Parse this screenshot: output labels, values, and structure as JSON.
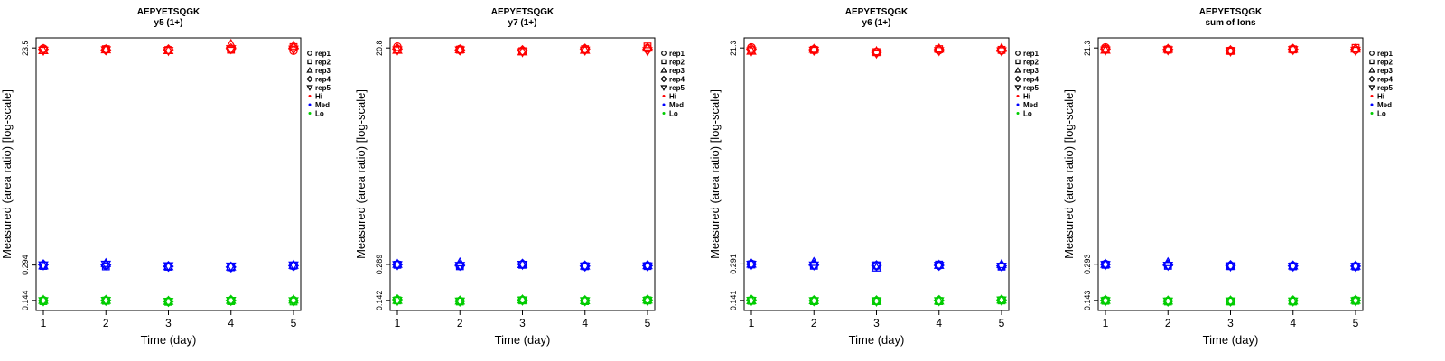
{
  "chart_data": [
    {
      "type": "scatter",
      "title": "AEPYETSQGK",
      "subtitle": "y5 (1+)",
      "xlabel": "Time (day)",
      "ylabel": "Measured (area ratio) [log-scale]",
      "log_y": true,
      "x": [
        1,
        2,
        3,
        4,
        5
      ],
      "yticks": [
        0.144,
        0.294,
        23.5
      ],
      "ytick_labels": [
        "0.144",
        "0.294",
        "23.5"
      ],
      "legend_placement": "right",
      "series": [
        {
          "rep": "rep1",
          "level": "Hi",
          "values": [
            23.2,
            23.0,
            22.6,
            22.8,
            22.3
          ]
        },
        {
          "rep": "rep2",
          "level": "Hi",
          "values": [
            22.6,
            22.9,
            22.5,
            22.7,
            23.9
          ]
        },
        {
          "rep": "rep3",
          "level": "Hi",
          "values": [
            22.4,
            22.8,
            22.4,
            25.4,
            24.6
          ]
        },
        {
          "rep": "rep4",
          "level": "Hi",
          "values": [
            22.9,
            22.6,
            22.7,
            23.2,
            23.4
          ]
        },
        {
          "rep": "rep5",
          "level": "Hi",
          "values": [
            22.3,
            22.5,
            22.2,
            23.0,
            22.8
          ]
        },
        {
          "rep": "rep1",
          "level": "Med",
          "values": [
            0.294,
            0.292,
            0.287,
            0.283,
            0.288
          ]
        },
        {
          "rep": "rep2",
          "level": "Med",
          "values": [
            0.289,
            0.286,
            0.284,
            0.281,
            0.291
          ]
        },
        {
          "rep": "rep3",
          "level": "Med",
          "values": [
            0.291,
            0.305,
            0.286,
            0.284,
            0.294
          ]
        },
        {
          "rep": "rep4",
          "level": "Med",
          "values": [
            0.296,
            0.294,
            0.286,
            0.282,
            0.29
          ]
        },
        {
          "rep": "rep5",
          "level": "Med",
          "values": [
            0.293,
            0.297,
            0.288,
            0.286,
            0.292
          ]
        },
        {
          "rep": "rep1",
          "level": "Lo",
          "values": [
            0.144,
            0.144,
            0.141,
            0.143,
            0.144
          ]
        },
        {
          "rep": "rep2",
          "level": "Lo",
          "values": [
            0.142,
            0.143,
            0.14,
            0.142,
            0.141
          ]
        },
        {
          "rep": "rep3",
          "level": "Lo",
          "values": [
            0.145,
            0.145,
            0.142,
            0.145,
            0.146
          ]
        },
        {
          "rep": "rep4",
          "level": "Lo",
          "values": [
            0.143,
            0.144,
            0.141,
            0.144,
            0.143
          ]
        },
        {
          "rep": "rep5",
          "level": "Lo",
          "values": [
            0.142,
            0.143,
            0.14,
            0.143,
            0.142
          ]
        }
      ]
    },
    {
      "type": "scatter",
      "title": "AEPYETSQGK",
      "subtitle": "y7 (1+)",
      "xlabel": "Time (day)",
      "ylabel": "Measured (area ratio) [log-scale]",
      "log_y": true,
      "x": [
        1,
        2,
        3,
        4,
        5
      ],
      "yticks": [
        0.142,
        0.289,
        20.8
      ],
      "ytick_labels": [
        "0.142",
        "0.289",
        "20.8"
      ],
      "legend_placement": "right",
      "series": [
        {
          "rep": "rep1",
          "level": "Hi",
          "values": [
            21.3,
            20.3,
            19.6,
            20.1,
            20.7
          ]
        },
        {
          "rep": "rep2",
          "level": "Hi",
          "values": [
            20.2,
            20.1,
            19.5,
            20.3,
            21.4
          ]
        },
        {
          "rep": "rep3",
          "level": "Hi",
          "values": [
            20.0,
            20.2,
            19.4,
            20.0,
            20.9
          ]
        },
        {
          "rep": "rep4",
          "level": "Hi",
          "values": [
            20.4,
            20.0,
            19.8,
            20.4,
            20.2
          ]
        },
        {
          "rep": "rep5",
          "level": "Hi",
          "values": [
            19.9,
            19.9,
            19.2,
            19.8,
            19.6
          ]
        },
        {
          "rep": "rep1",
          "level": "Med",
          "values": [
            0.289,
            0.281,
            0.289,
            0.281,
            0.281
          ]
        },
        {
          "rep": "rep2",
          "level": "Med",
          "values": [
            0.287,
            0.279,
            0.287,
            0.279,
            0.28
          ]
        },
        {
          "rep": "rep3",
          "level": "Med",
          "values": [
            0.291,
            0.3,
            0.29,
            0.282,
            0.284
          ]
        },
        {
          "rep": "rep4",
          "level": "Med",
          "values": [
            0.288,
            0.284,
            0.291,
            0.28,
            0.282
          ]
        },
        {
          "rep": "rep5",
          "level": "Med",
          "values": [
            0.286,
            0.282,
            0.288,
            0.278,
            0.279
          ]
        },
        {
          "rep": "rep1",
          "level": "Lo",
          "values": [
            0.143,
            0.14,
            0.143,
            0.141,
            0.143
          ]
        },
        {
          "rep": "rep2",
          "level": "Lo",
          "values": [
            0.142,
            0.139,
            0.142,
            0.14,
            0.142
          ]
        },
        {
          "rep": "rep3",
          "level": "Lo",
          "values": [
            0.143,
            0.141,
            0.144,
            0.142,
            0.144
          ]
        },
        {
          "rep": "rep4",
          "level": "Lo",
          "values": [
            0.144,
            0.14,
            0.143,
            0.141,
            0.143
          ]
        },
        {
          "rep": "rep5",
          "level": "Lo",
          "values": [
            0.141,
            0.139,
            0.142,
            0.14,
            0.141
          ]
        }
      ]
    },
    {
      "type": "scatter",
      "title": "AEPYETSQGK",
      "subtitle": "y6 (1+)",
      "xlabel": "Time (day)",
      "ylabel": "Measured (area ratio) [log-scale]",
      "log_y": true,
      "x": [
        1,
        2,
        3,
        4,
        5
      ],
      "yticks": [
        0.141,
        0.291,
        21.3
      ],
      "ytick_labels": [
        "0.141",
        "0.291",
        "21.3"
      ],
      "legend_placement": "right",
      "series": [
        {
          "rep": "rep1",
          "level": "Hi",
          "values": [
            21.5,
            20.7,
            19.7,
            20.4,
            20.3
          ]
        },
        {
          "rep": "rep2",
          "level": "Hi",
          "values": [
            20.6,
            20.5,
            19.6,
            20.8,
            20.5
          ]
        },
        {
          "rep": "rep3",
          "level": "Hi",
          "values": [
            20.1,
            20.9,
            19.9,
            21.0,
            21.2
          ]
        },
        {
          "rep": "rep4",
          "level": "Hi",
          "values": [
            20.8,
            20.6,
            19.5,
            20.6,
            20.4
          ]
        },
        {
          "rep": "rep5",
          "level": "Hi",
          "values": [
            20.0,
            20.2,
            19.1,
            20.1,
            20.0
          ]
        },
        {
          "rep": "rep1",
          "level": "Med",
          "values": [
            0.291,
            0.284,
            0.281,
            0.282,
            0.278
          ]
        },
        {
          "rep": "rep2",
          "level": "Med",
          "values": [
            0.288,
            0.281,
            0.283,
            0.287,
            0.276
          ]
        },
        {
          "rep": "rep3",
          "level": "Med",
          "values": [
            0.292,
            0.302,
            0.27,
            0.285,
            0.289
          ]
        },
        {
          "rep": "rep4",
          "level": "Med",
          "values": [
            0.29,
            0.286,
            0.282,
            0.283,
            0.28
          ]
        },
        {
          "rep": "rep5",
          "level": "Med",
          "values": [
            0.287,
            0.283,
            0.279,
            0.281,
            0.277
          ]
        },
        {
          "rep": "rep1",
          "level": "Lo",
          "values": [
            0.141,
            0.14,
            0.139,
            0.14,
            0.142
          ]
        },
        {
          "rep": "rep2",
          "level": "Lo",
          "values": [
            0.14,
            0.139,
            0.139,
            0.139,
            0.141
          ]
        },
        {
          "rep": "rep3",
          "level": "Lo",
          "values": [
            0.141,
            0.141,
            0.14,
            0.14,
            0.143
          ]
        },
        {
          "rep": "rep4",
          "level": "Lo",
          "values": [
            0.142,
            0.14,
            0.14,
            0.141,
            0.142
          ]
        },
        {
          "rep": "rep5",
          "level": "Lo",
          "values": [
            0.14,
            0.139,
            0.138,
            0.139,
            0.141
          ]
        }
      ]
    },
    {
      "type": "scatter",
      "title": "AEPYETSQGK",
      "subtitle": "sum of Ions",
      "xlabel": "Time (day)",
      "ylabel": "Measured (area ratio) [log-scale]",
      "log_y": true,
      "x": [
        1,
        2,
        3,
        4,
        5
      ],
      "yticks": [
        0.143,
        0.293,
        21.3
      ],
      "ytick_labels": [
        "0.143",
        "0.293",
        "21.3"
      ],
      "legend_placement": "right",
      "series": [
        {
          "rep": "rep1",
          "level": "Hi",
          "values": [
            21.5,
            20.8,
            20.2,
            20.8,
            20.6
          ]
        },
        {
          "rep": "rep2",
          "level": "Hi",
          "values": [
            20.8,
            20.6,
            20.1,
            20.7,
            21.3
          ]
        },
        {
          "rep": "rep3",
          "level": "Hi",
          "values": [
            20.5,
            20.9,
            20.3,
            20.9,
            21.0
          ]
        },
        {
          "rep": "rep4",
          "level": "Hi",
          "values": [
            20.9,
            20.7,
            20.2,
            20.8,
            20.7
          ]
        },
        {
          "rep": "rep5",
          "level": "Hi",
          "values": [
            20.3,
            20.4,
            19.9,
            20.5,
            20.2
          ]
        },
        {
          "rep": "rep1",
          "level": "Med",
          "values": [
            0.293,
            0.287,
            0.284,
            0.283,
            0.281
          ]
        },
        {
          "rep": "rep2",
          "level": "Med",
          "values": [
            0.29,
            0.284,
            0.282,
            0.281,
            0.28
          ]
        },
        {
          "rep": "rep3",
          "level": "Med",
          "values": [
            0.294,
            0.304,
            0.285,
            0.285,
            0.284
          ]
        },
        {
          "rep": "rep4",
          "level": "Med",
          "values": [
            0.292,
            0.289,
            0.286,
            0.283,
            0.282
          ]
        },
        {
          "rep": "rep5",
          "level": "Med",
          "values": [
            0.289,
            0.285,
            0.281,
            0.28,
            0.279
          ]
        },
        {
          "rep": "rep1",
          "level": "Lo",
          "values": [
            0.143,
            0.141,
            0.141,
            0.141,
            0.143
          ]
        },
        {
          "rep": "rep2",
          "level": "Lo",
          "values": [
            0.142,
            0.14,
            0.14,
            0.14,
            0.142
          ]
        },
        {
          "rep": "rep3",
          "level": "Lo",
          "values": [
            0.144,
            0.142,
            0.142,
            0.142,
            0.144
          ]
        },
        {
          "rep": "rep4",
          "level": "Lo",
          "values": [
            0.143,
            0.141,
            0.141,
            0.142,
            0.143
          ]
        },
        {
          "rep": "rep5",
          "level": "Lo",
          "values": [
            0.141,
            0.14,
            0.14,
            0.14,
            0.141
          ]
        }
      ]
    }
  ],
  "legend": {
    "reps": [
      {
        "label": "rep1",
        "marker": "circle"
      },
      {
        "label": "rep2",
        "marker": "square"
      },
      {
        "label": "rep3",
        "marker": "triangle-up"
      },
      {
        "label": "rep4",
        "marker": "diamond"
      },
      {
        "label": "rep5",
        "marker": "triangle-down"
      }
    ],
    "levels": [
      {
        "label": "Hi",
        "color": "#ff0000"
      },
      {
        "label": "Med",
        "color": "#0000ff"
      },
      {
        "label": "Lo",
        "color": "#00cc00"
      }
    ]
  }
}
